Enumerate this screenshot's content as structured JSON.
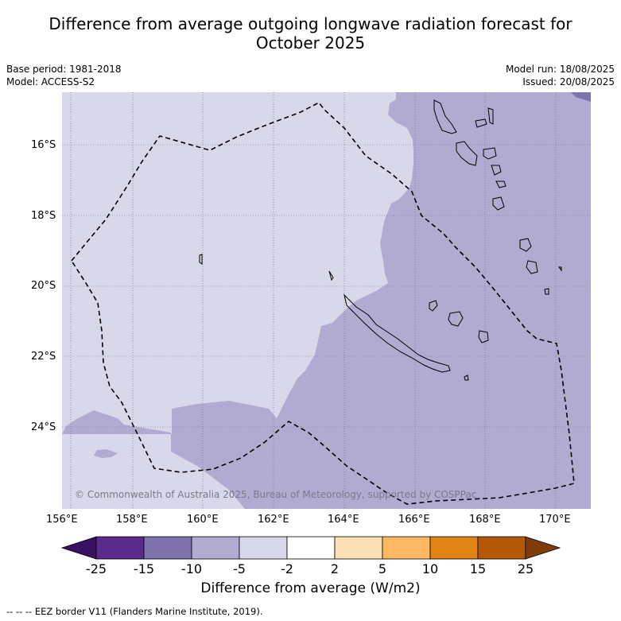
{
  "header": {
    "title_line1": "Difference from average outgoing longwave radiation forecast for",
    "title_line2": "October 2025"
  },
  "info": {
    "base_period": "Base period: 1981-2018",
    "model": "Model: ACCESS-S2",
    "model_run": "Model run: 18/08/2025",
    "issued": "Issued: 20/08/2025"
  },
  "axes": {
    "lon_labels": [
      "156°E",
      "158°E",
      "160°E",
      "162°E",
      "164°E",
      "166°E",
      "168°E",
      "170°E"
    ],
    "lat_labels": [
      "16°S",
      "18°S",
      "20°S",
      "22°S",
      "24°S"
    ]
  },
  "map": {
    "credit": "© Commonwealth of Australia 2025, Bureau of Meteorology, supported by COSPPac",
    "colors": {
      "light": "#d8d8ea",
      "medium": "#b1abd2",
      "dark": "#7f73ad"
    }
  },
  "colorbar": {
    "tick_labels": [
      "-25",
      "-15",
      "-10",
      "-5",
      "-2",
      "2",
      "5",
      "10",
      "15",
      "25"
    ],
    "colors": [
      "#3b0f63",
      "#5a2b8b",
      "#7f73ad",
      "#b1abd2",
      "#d8d8ea",
      "#ffffff",
      "#fde0b5",
      "#fdb863",
      "#e08214",
      "#b35806",
      "#7f3b08"
    ],
    "label": "Difference from average (W/m2)"
  },
  "footnote": "--  --  -- EEZ border V11 (Flanders Marine Institute, 2019)."
}
